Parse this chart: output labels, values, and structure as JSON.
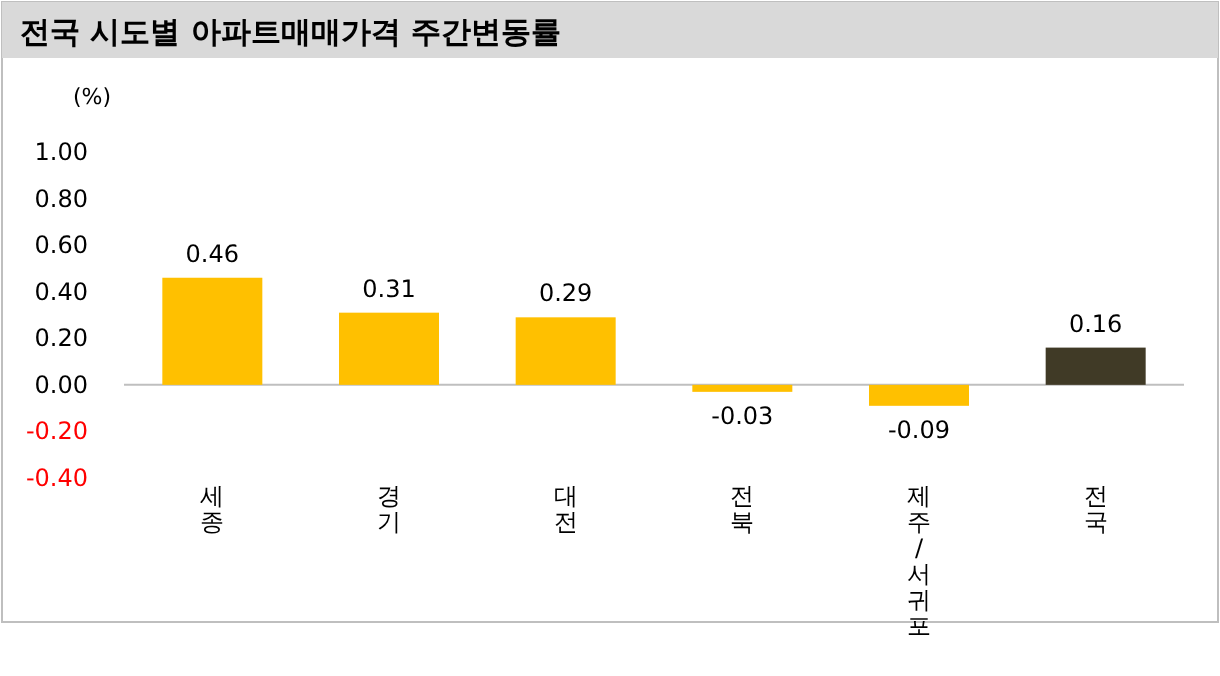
{
  "chart_data": {
    "type": "bar",
    "title": "전국 시도별 아파트매매가격 주간변동률",
    "ylabel": "(%)",
    "categories": [
      "세종",
      "경기",
      "대전",
      "전북",
      "제주/서귀포",
      "전국"
    ],
    "values": [
      0.46,
      0.31,
      0.29,
      -0.03,
      -0.09,
      0.16
    ],
    "colors": [
      "#ffc000",
      "#ffc000",
      "#ffc000",
      "#ffc000",
      "#ffc000",
      "#403a26"
    ],
    "ylim": [
      -0.4,
      1.0
    ],
    "yticks": [
      {
        "value": -0.4,
        "label": "-0.40"
      },
      {
        "value": -0.2,
        "label": "-0.20"
      },
      {
        "value": 0,
        "label": "0.00"
      },
      {
        "value": 0.2,
        "label": "0.20"
      },
      {
        "value": 0.4,
        "label": "0.40"
      },
      {
        "value": 0.6,
        "label": "0.60"
      },
      {
        "value": 0.8,
        "label": "0.80"
      },
      {
        "value": 1.0,
        "label": "1.00"
      }
    ],
    "data_labels": true
  }
}
